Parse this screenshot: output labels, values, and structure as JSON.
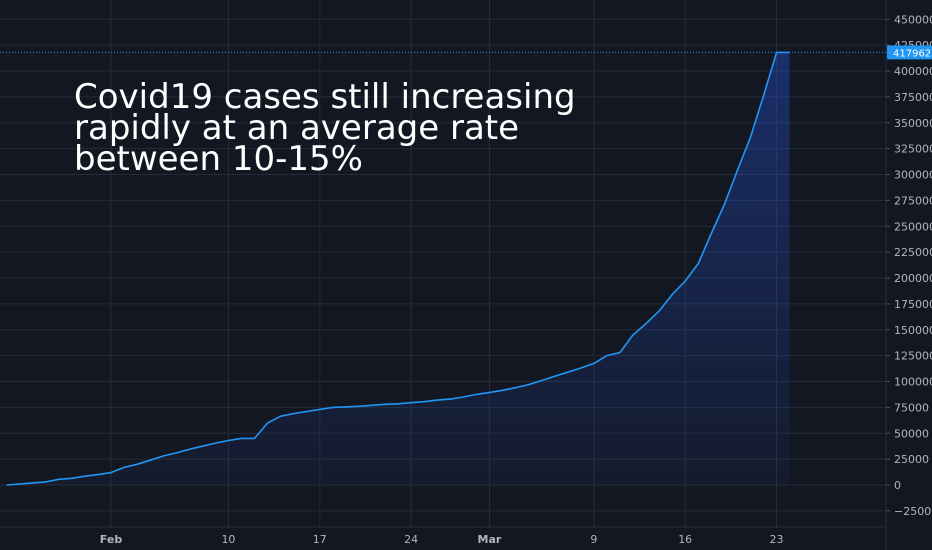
{
  "chart_data": {
    "type": "area",
    "annotation": "Covid19 cases still increasing rapidly at an average rate between 10-15%",
    "y_ticks": [
      -25000,
      0,
      25000,
      50000,
      75000,
      100000,
      125000,
      150000,
      175000,
      200000,
      225000,
      250000,
      275000,
      300000,
      325000,
      350000,
      375000,
      400000,
      425000,
      450000
    ],
    "y_tick_labels": [
      "−25000",
      "0",
      "25000",
      "50000",
      "75000",
      "100000",
      "125000",
      "150000",
      "175000",
      "200000",
      "225000",
      "250000",
      "275000",
      "300000",
      "325000",
      "350000",
      "375000",
      "400000",
      "425000",
      "450000"
    ],
    "ylim": [
      -40000,
      470000
    ],
    "x_ticks": [
      {
        "label": "Feb",
        "x": 11,
        "major": true
      },
      {
        "label": "10",
        "x": 20,
        "major": false
      },
      {
        "label": "17",
        "x": 27,
        "major": false
      },
      {
        "label": "24",
        "x": 34,
        "major": false
      },
      {
        "label": "Mar",
        "x": 40,
        "major": true
      },
      {
        "label": "9",
        "x": 48,
        "major": false
      },
      {
        "label": "16",
        "x": 55,
        "major": false
      },
      {
        "label": "23",
        "x": 62,
        "major": false
      }
    ],
    "xlim": [
      2.5,
      72
    ],
    "x_note": "x = day of 2020 (Jan 1 = day 1)",
    "last_value": 417962,
    "last_value_label": "417962",
    "line_color": "#2196f3",
    "series": [
      {
        "x": [
          3,
          4,
          5,
          6,
          7,
          8,
          9,
          10,
          11,
          12,
          13,
          14,
          15,
          16,
          17,
          18,
          19,
          20,
          21,
          22,
          23,
          24,
          25,
          26,
          27,
          28,
          29,
          30,
          31,
          32,
          33,
          34,
          35,
          36,
          37,
          38,
          39,
          40,
          41,
          42,
          43,
          44,
          45,
          46,
          47,
          48,
          49,
          50,
          51,
          52,
          53,
          54,
          55,
          56,
          57,
          58,
          59,
          60,
          61,
          62,
          63
        ],
        "values": [
          0,
          1000,
          2000,
          3000,
          5500,
          6500,
          8500,
          10000,
          12000,
          17000,
          20000,
          24000,
          28000,
          31000,
          34500,
          37500,
          40500,
          43000,
          45000,
          45000,
          60000,
          66500,
          69000,
          71000,
          73000,
          75000,
          75500,
          76000,
          77000,
          78000,
          78500,
          79500,
          80500,
          82000,
          83000,
          85000,
          87500,
          89500,
          91500,
          94000,
          97000,
          101000,
          105000,
          109000,
          113000,
          117500,
          125000,
          128000,
          145000,
          156000,
          168000,
          184000,
          197000,
          214000,
          243000,
          271000,
          304000,
          336000,
          376000,
          417962,
          417962
        ]
      }
    ]
  }
}
